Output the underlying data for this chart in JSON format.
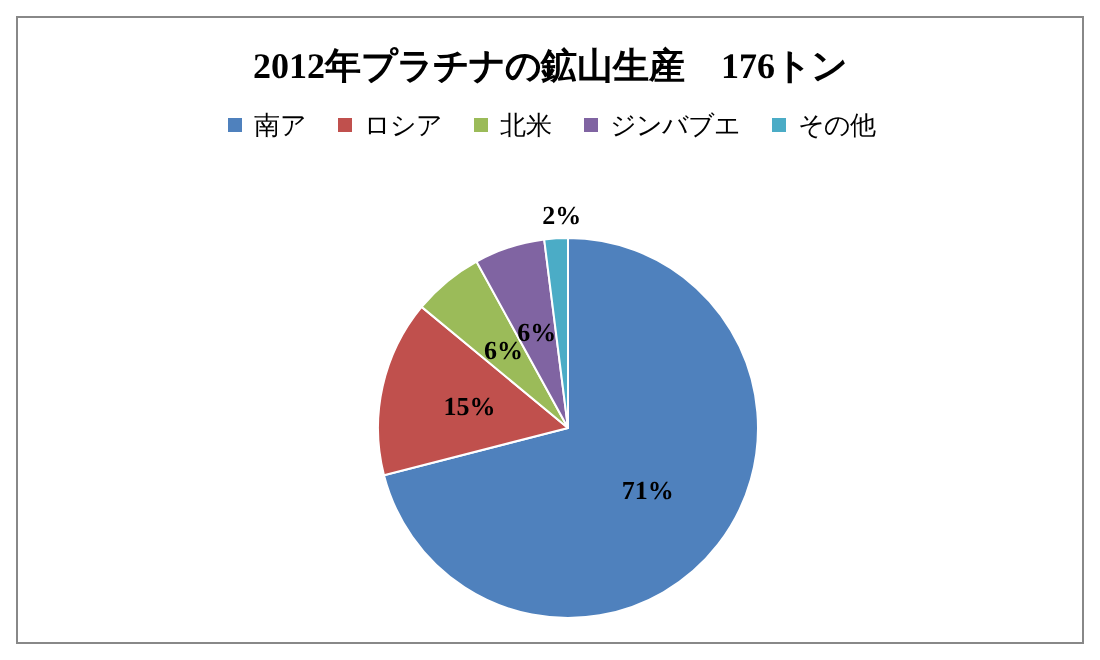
{
  "chart_data": {
    "type": "pie",
    "title": "2012年プラチナの鉱山生産　176トン",
    "categories": [
      "南ア",
      "ロシア",
      "北米",
      "ジンバブエ",
      "その他"
    ],
    "values": [
      71,
      15,
      6,
      6,
      2
    ],
    "colors": [
      "#4f81bd",
      "#c0504d",
      "#9bbb59",
      "#8064a2",
      "#4bacc6"
    ],
    "value_labels": [
      "71%",
      "15%",
      "6%",
      "6%",
      "2%"
    ],
    "legend": "top"
  }
}
